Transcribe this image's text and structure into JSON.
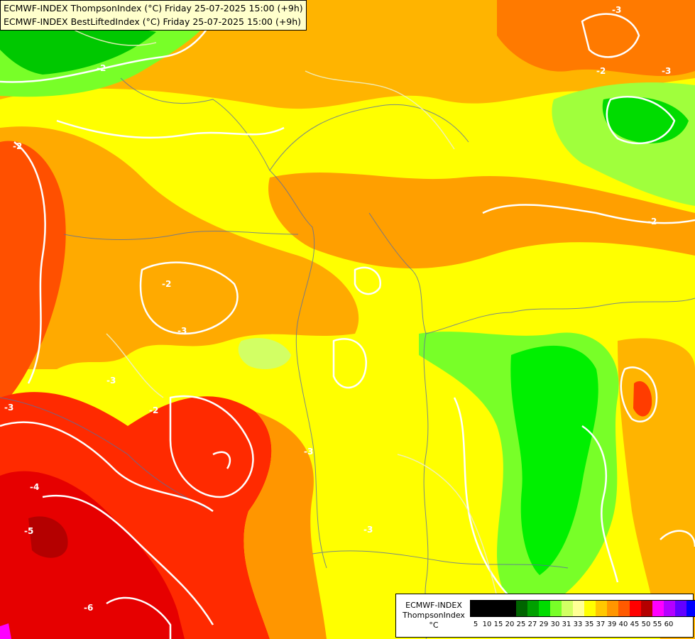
{
  "map": {
    "title_lines": [
      "ECMWF-INDEX ThompsonIndex (°C) Friday 25-07-2025 15:00 (+9h)",
      "ECMWF-INDEX BestLiftedIndex (°C) Friday 25-07-2025 15:00 (+9h)"
    ],
    "contour_labels": [
      "-3",
      "-2",
      "-2",
      "-2",
      "-2",
      "-3",
      "-3",
      "-2",
      "-3",
      "-3",
      "-3",
      "-4",
      "-5",
      "-6",
      "-3",
      "-2"
    ]
  },
  "legend": {
    "title_line1": "ECMWF-INDEX",
    "title_line2": "ThompsonIndex",
    "unit": "°C",
    "swatches": [
      "#000000",
      "#000000",
      "#000000",
      "#000000",
      "#006400",
      "#00a000",
      "#00dc00",
      "#78ff28",
      "#d2ff64",
      "#ffff96",
      "#ffff00",
      "#ffc800",
      "#ff9600",
      "#ff5a00",
      "#ff0000",
      "#b40000",
      "#ff00ff",
      "#b400ff",
      "#6400ff",
      "#0000ff"
    ],
    "labels": [
      "5",
      "10",
      "15",
      "20",
      "25",
      "27",
      "29",
      "30",
      "31",
      "33",
      "35",
      "37",
      "39",
      "40",
      "45",
      "50",
      "55",
      "60"
    ]
  }
}
